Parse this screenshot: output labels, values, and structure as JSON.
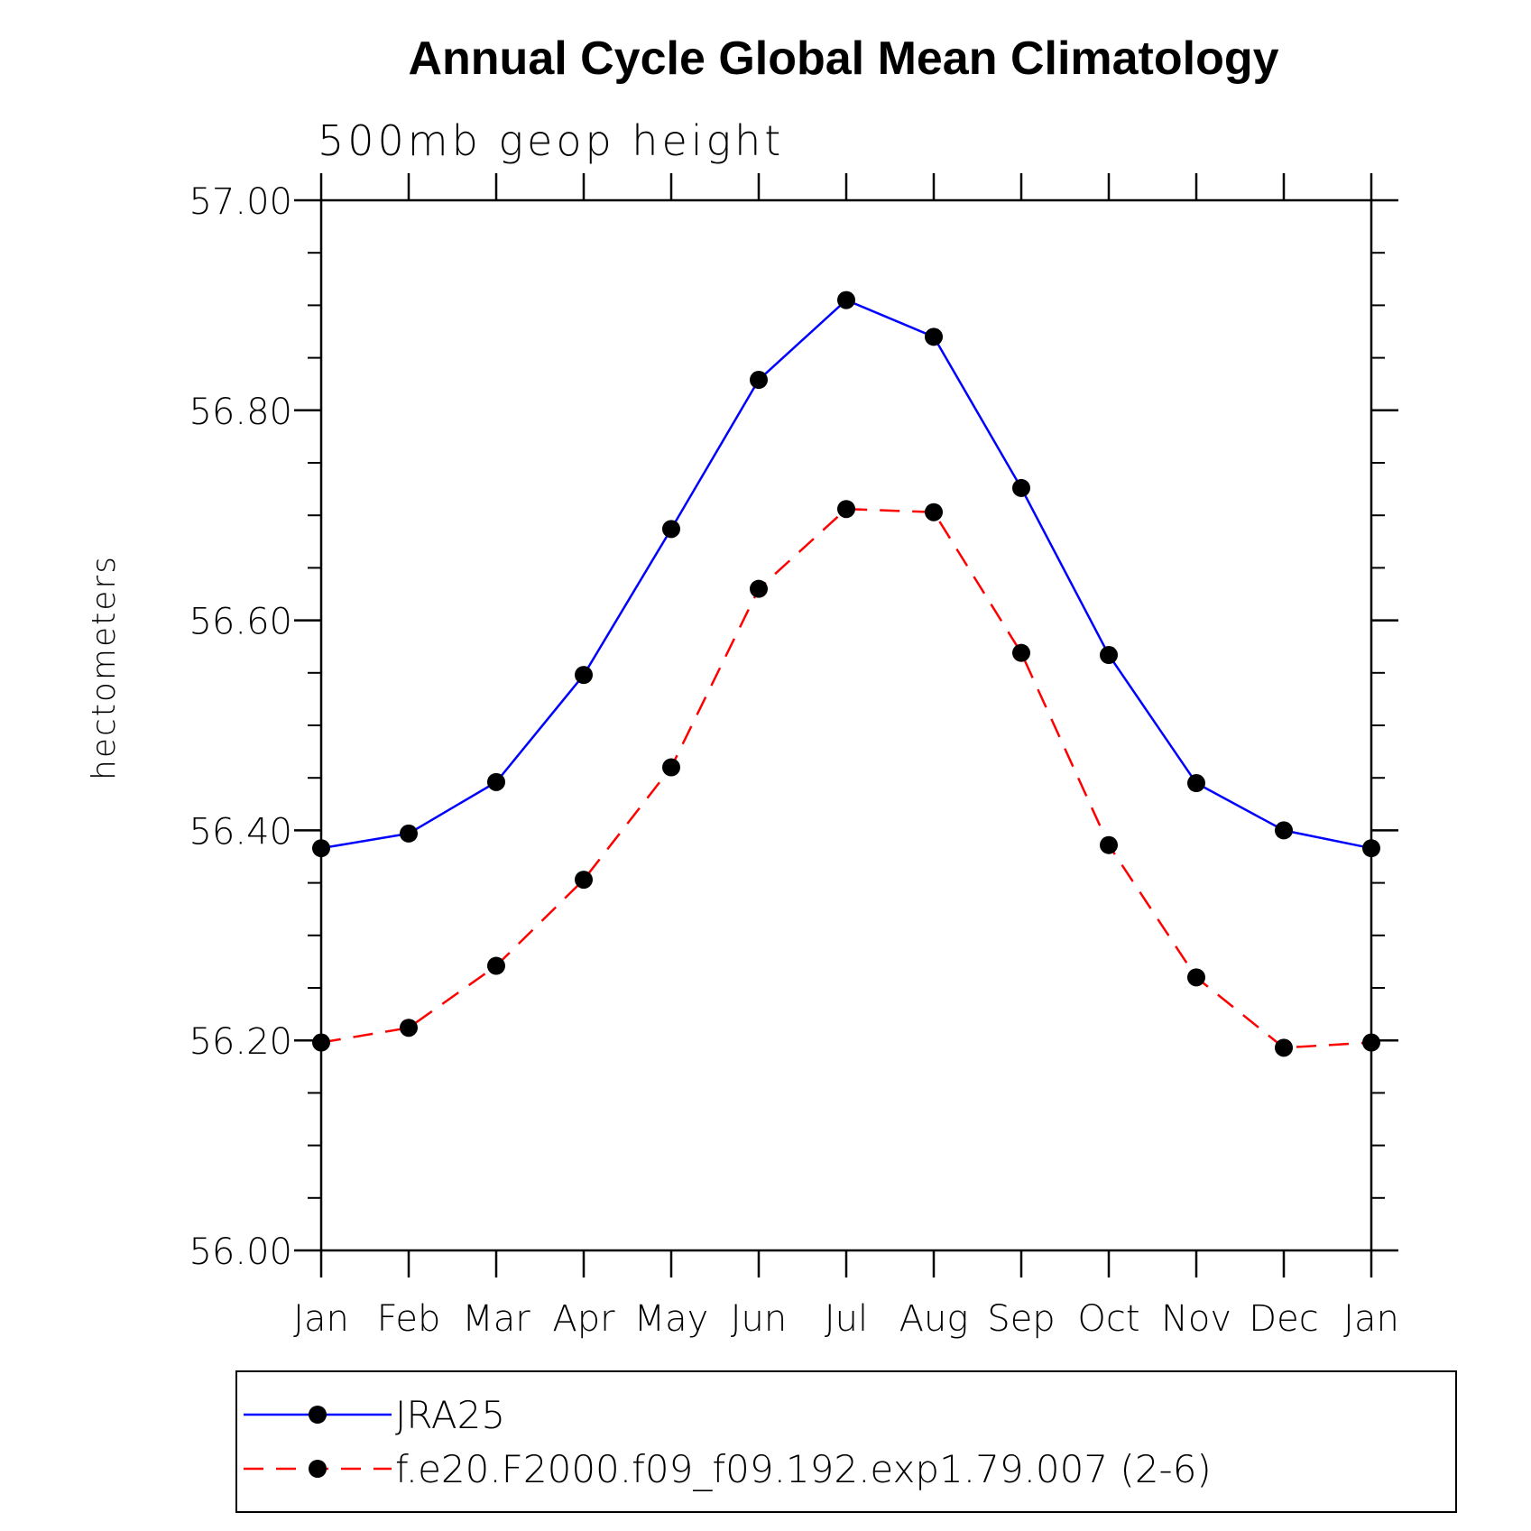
{
  "chart_data": {
    "type": "line",
    "title": "Annual Cycle Global Mean Climatology",
    "subtitle": "500mb geop height",
    "ylabel": "hectometers",
    "xlabel": "",
    "categories": [
      "Jan",
      "Feb",
      "Mar",
      "Apr",
      "May",
      "Jun",
      "Jul",
      "Aug",
      "Sep",
      "Oct",
      "Nov",
      "Dec",
      "Jan"
    ],
    "ylim": [
      56.0,
      57.0
    ],
    "y_ticks": [
      "56.00",
      "56.20",
      "56.40",
      "56.60",
      "56.80",
      "57.00"
    ],
    "grid": false,
    "legend_position": "bottom",
    "series": [
      {
        "name": "JRA25",
        "color": "#0000ff",
        "line_style": "solid",
        "marker": "filled-circle",
        "values": [
          56.383,
          56.397,
          56.446,
          56.548,
          56.687,
          56.829,
          56.905,
          56.87,
          56.726,
          56.567,
          56.445,
          56.4,
          56.383
        ]
      },
      {
        "name": "f.e20.F2000.f09_f09.192.exp1.79.007 (2-6)",
        "color": "#ff0000",
        "line_style": "dashed",
        "marker": "filled-circle",
        "values": [
          56.198,
          56.212,
          56.271,
          56.353,
          56.46,
          56.63,
          56.706,
          56.703,
          56.569,
          56.386,
          56.26,
          56.193,
          56.198
        ]
      }
    ]
  }
}
